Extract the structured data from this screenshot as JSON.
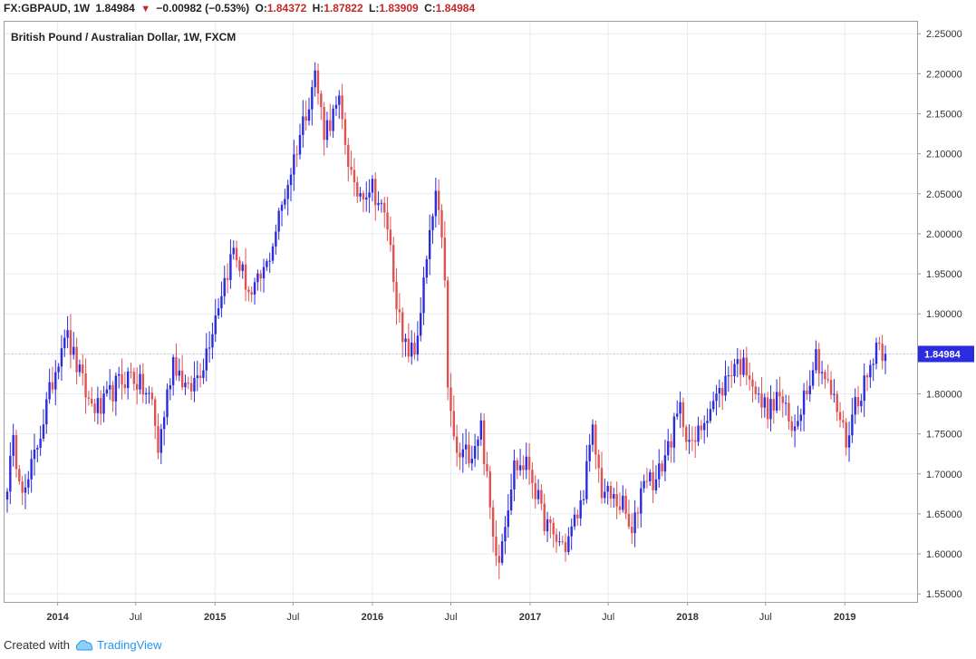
{
  "header": {
    "symbol": "FX:GBPAUD, 1W",
    "last": "1.84984",
    "change": "−0.00982 (−0.53%)",
    "open_label": "O:",
    "open": "1.84372",
    "high_label": "H:",
    "high": "1.87822",
    "low_label": "L:",
    "low": "1.83909",
    "close_label": "C:",
    "close": "1.84984"
  },
  "footer": {
    "created_with": "Created with",
    "brand": "TradingView"
  },
  "colors": {
    "up": "#2b2bdf",
    "down": "#e05252",
    "grid": "#e6ebf0",
    "price_tag": "#2b2bdf"
  },
  "chart_data": {
    "type": "candlestick",
    "title": "British Pound / Australian Dollar, 1W, FXCM",
    "ylim": [
      1.54,
      2.265
    ],
    "y_ticks": [
      "1.55000",
      "1.60000",
      "1.65000",
      "1.70000",
      "1.75000",
      "1.80000",
      "1.85000",
      "1.90000",
      "1.95000",
      "2.00000",
      "2.05000",
      "2.10000",
      "2.15000",
      "2.20000",
      "2.25000"
    ],
    "x_ticks": [
      "2014",
      "Jul",
      "2015",
      "Jul",
      "2016",
      "Jul",
      "2017",
      "Jul",
      "2018",
      "Jul",
      "2019"
    ],
    "current_price": "1.84984",
    "grid": true,
    "anchors": [
      [
        "2013-09-06",
        1.69
      ],
      [
        "2013-09-20",
        1.735
      ],
      [
        "2013-10-18",
        1.675
      ],
      [
        "2013-12-13",
        1.8
      ],
      [
        "2014-01-17",
        1.88
      ],
      [
        "2014-03-14",
        1.79
      ],
      [
        "2014-04-11",
        1.78
      ],
      [
        "2014-05-16",
        1.81
      ],
      [
        "2014-06-20",
        1.825
      ],
      [
        "2014-08-08",
        1.79
      ],
      [
        "2014-08-22",
        1.73
      ],
      [
        "2014-09-26",
        1.845
      ],
      [
        "2014-10-31",
        1.8
      ],
      [
        "2014-12-05",
        1.84
      ],
      [
        "2015-01-16",
        1.93
      ],
      [
        "2015-02-13",
        1.98
      ],
      [
        "2015-03-27",
        1.92
      ],
      [
        "2015-05-01",
        1.96
      ],
      [
        "2015-06-26",
        2.08
      ],
      [
        "2015-08-21",
        2.2
      ],
      [
        "2015-09-11",
        2.13
      ],
      [
        "2015-10-16",
        2.16
      ],
      [
        "2015-11-20",
        2.05
      ],
      [
        "2016-01-01",
        2.06
      ],
      [
        "2016-02-05",
        2.01
      ],
      [
        "2016-03-11",
        1.86
      ],
      [
        "2016-04-08",
        1.85
      ],
      [
        "2016-05-27",
        2.05
      ],
      [
        "2016-06-17",
        1.95
      ],
      [
        "2016-06-24",
        1.8
      ],
      [
        "2016-07-15",
        1.72
      ],
      [
        "2016-08-19",
        1.73
      ],
      [
        "2016-09-09",
        1.76
      ],
      [
        "2016-10-07",
        1.62
      ],
      [
        "2016-10-21",
        1.6
      ],
      [
        "2016-11-25",
        1.71
      ],
      [
        "2016-12-30",
        1.71
      ],
      [
        "2017-01-27",
        1.65
      ],
      [
        "2017-02-24",
        1.62
      ],
      [
        "2017-03-24",
        1.61
      ],
      [
        "2017-04-28",
        1.66
      ],
      [
        "2017-05-26",
        1.75
      ],
      [
        "2017-06-16",
        1.68
      ],
      [
        "2017-07-07",
        1.67
      ],
      [
        "2017-08-04",
        1.66
      ],
      [
        "2017-08-25",
        1.62
      ],
      [
        "2017-09-22",
        1.7
      ],
      [
        "2017-10-20",
        1.69
      ],
      [
        "2017-12-15",
        1.78
      ],
      [
        "2018-01-12",
        1.73
      ],
      [
        "2018-02-16",
        1.78
      ],
      [
        "2018-03-16",
        1.8
      ],
      [
        "2018-04-20",
        1.84
      ],
      [
        "2018-05-25",
        1.83
      ],
      [
        "2018-06-15",
        1.79
      ],
      [
        "2018-07-13",
        1.78
      ],
      [
        "2018-08-03",
        1.8
      ],
      [
        "2018-08-31",
        1.75
      ],
      [
        "2018-09-28",
        1.8
      ],
      [
        "2018-10-26",
        1.85
      ],
      [
        "2018-11-23",
        1.81
      ],
      [
        "2018-12-21",
        1.77
      ],
      [
        "2019-01-04",
        1.74
      ],
      [
        "2019-01-25",
        1.79
      ],
      [
        "2019-02-22",
        1.82
      ],
      [
        "2019-03-15",
        1.865
      ],
      [
        "2019-04-05",
        1.85
      ]
    ]
  }
}
